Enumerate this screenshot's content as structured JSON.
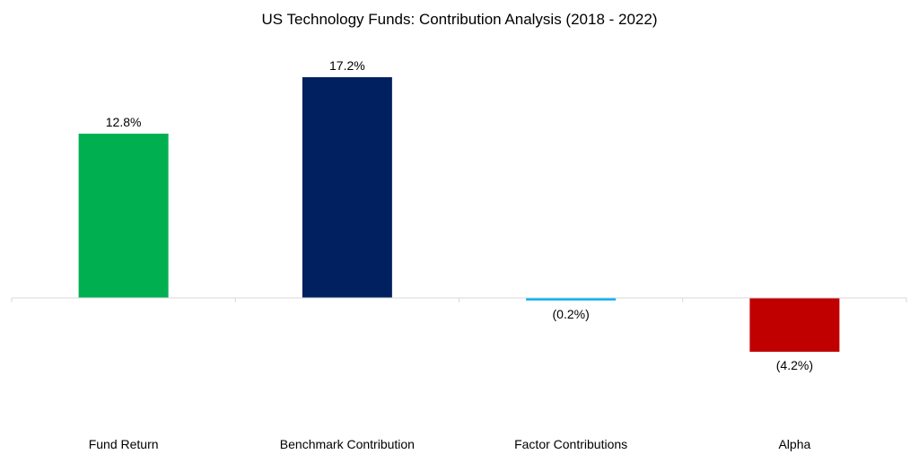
{
  "chart_data": {
    "type": "bar",
    "title": "US Technology Funds: Contribution Analysis (2018 - 2022)",
    "categories": [
      "Fund Return",
      "Benchmark Contribution",
      "Factor Contributions",
      "Alpha"
    ],
    "values": [
      12.8,
      17.2,
      -0.2,
      -4.2
    ],
    "data_labels": [
      "12.8%",
      "17.2%",
      "(0.2%)",
      "(4.2%)"
    ],
    "colors": [
      "#00B050",
      "#002060",
      "#00B0F0",
      "#C00000"
    ],
    "xlabel": "",
    "ylabel": "",
    "grid": false,
    "legend": "none"
  }
}
